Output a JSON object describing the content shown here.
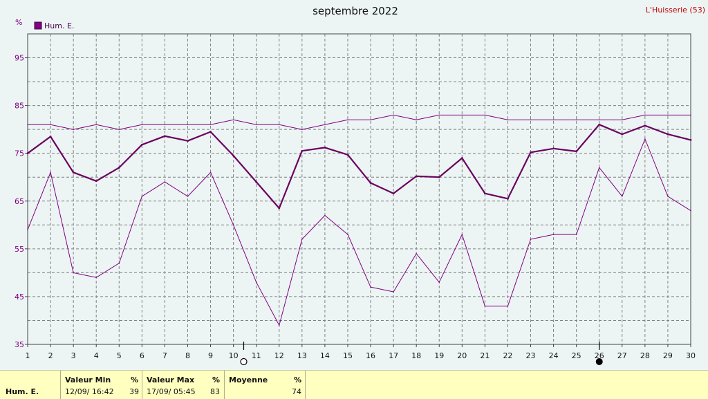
{
  "header": {
    "title": "septembre 2022",
    "station": "L'Huisserie (53)"
  },
  "legend": {
    "label": "Hum. E.",
    "unit": "%"
  },
  "colors": {
    "series": "#800080",
    "mean": "#6a005f",
    "grid": "#808080"
  },
  "moon_icons": [
    "full-moon-icon",
    "new-moon-icon"
  ],
  "chart_data": {
    "type": "line",
    "title": "septembre 2022",
    "ylabel": "%",
    "ylim": [
      35,
      100
    ],
    "yticks": [
      35,
      45,
      55,
      65,
      75,
      85,
      95
    ],
    "x": [
      "1",
      "2",
      "3",
      "4",
      "5",
      "6",
      "7",
      "8",
      "9",
      "10",
      "11",
      "12",
      "13",
      "14",
      "15",
      "16",
      "17",
      "18",
      "19",
      "20",
      "21",
      "22",
      "23",
      "24",
      "25",
      "26",
      "27",
      "28",
      "29",
      "30"
    ],
    "grid": true,
    "legend_position": "top-left",
    "series": [
      {
        "name": "Hum. E.",
        "role": "mean",
        "values": [
          75,
          78.5,
          71,
          69.2,
          72,
          76.8,
          78.6,
          77.6,
          79.5,
          74.5,
          69,
          63.5,
          75.5,
          76.2,
          74.7,
          68.8,
          66.6,
          70.2,
          70,
          74,
          66.6,
          65.5,
          75.2,
          76,
          75.4,
          81,
          79,
          80.8,
          79,
          77.8
        ]
      },
      {
        "role": "max",
        "values": [
          81,
          81,
          80,
          81,
          80,
          81,
          81,
          81,
          81,
          82,
          81,
          81,
          80,
          81,
          82,
          82,
          83,
          82,
          83,
          83,
          83,
          82,
          82,
          82,
          82,
          82,
          82,
          83,
          83,
          83
        ]
      },
      {
        "role": "min",
        "values": [
          59,
          71,
          50,
          49,
          52,
          66,
          69,
          66,
          71,
          60,
          48,
          39,
          57,
          62,
          58,
          47,
          46,
          54,
          48,
          58,
          43,
          43,
          57,
          58,
          58,
          72,
          66,
          78,
          66,
          63
        ]
      }
    ]
  },
  "stats": {
    "row_label": "Hum. E.",
    "min": {
      "header": "Valeur Min",
      "unit": "%",
      "date": "12/09/ 16:42",
      "value": "39"
    },
    "max": {
      "header": "Valeur Max",
      "unit": "%",
      "date": "17/09/ 05:45",
      "value": "83"
    },
    "avg": {
      "header": "Moyenne",
      "unit": "%",
      "value": "74"
    }
  }
}
